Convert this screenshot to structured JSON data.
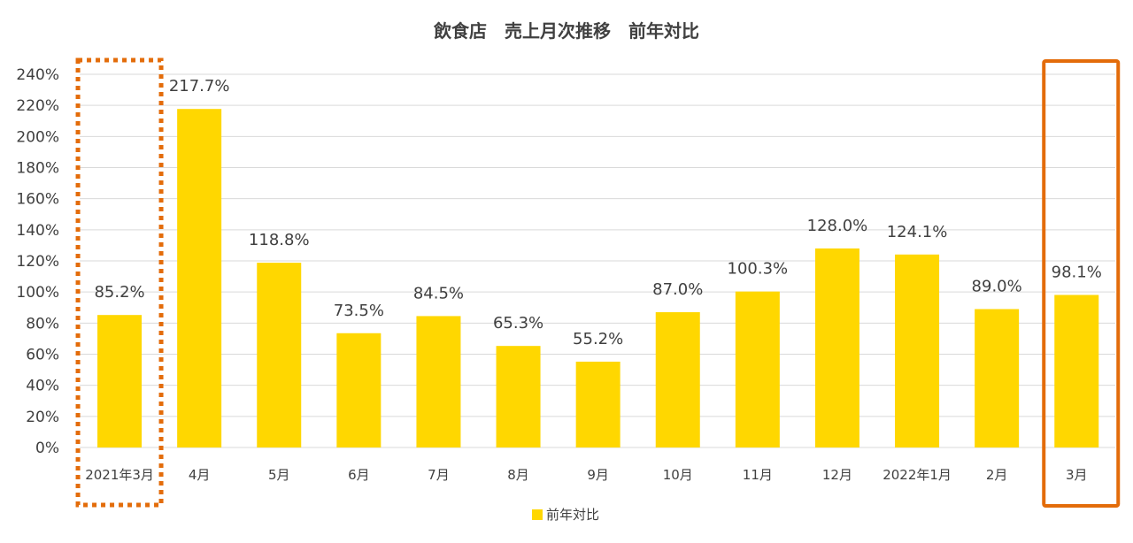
{
  "chart_data": {
    "type": "bar",
    "title": "飲食店　売上月次推移　前年対比",
    "categories": [
      "2021年3月",
      "4月",
      "5月",
      "6月",
      "7月",
      "8月",
      "9月",
      "10月",
      "11月",
      "12月",
      "2022年1月",
      "2月",
      "3月"
    ],
    "series": [
      {
        "name": "前年対比",
        "values": [
          85.2,
          217.7,
          118.8,
          73.5,
          84.5,
          65.3,
          55.2,
          87.0,
          100.3,
          128.0,
          124.1,
          89.0,
          98.1
        ]
      }
    ],
    "data_labels": [
      "85.2%",
      "217.7%",
      "118.8%",
      "73.5%",
      "84.5%",
      "65.3%",
      "55.2%",
      "87.0%",
      "100.3%",
      "128.0%",
      "124.1%",
      "89.0%",
      "98.1%"
    ],
    "y_ticks": [
      "0%",
      "20%",
      "40%",
      "60%",
      "80%",
      "100%",
      "120%",
      "140%",
      "160%",
      "180%",
      "200%",
      "220%",
      "240%"
    ],
    "ylim": [
      0,
      240
    ],
    "xlabel": "",
    "ylabel": "",
    "grid": true,
    "legend_position": "bottom",
    "highlights": [
      {
        "category": "2021年3月",
        "style": "dotted"
      },
      {
        "category": "3月",
        "style": "solid"
      }
    ],
    "colors": {
      "bar": "#FFD700",
      "highlight": "#E36C0A",
      "grid": "#D9D9D9",
      "text": "#404040"
    }
  }
}
